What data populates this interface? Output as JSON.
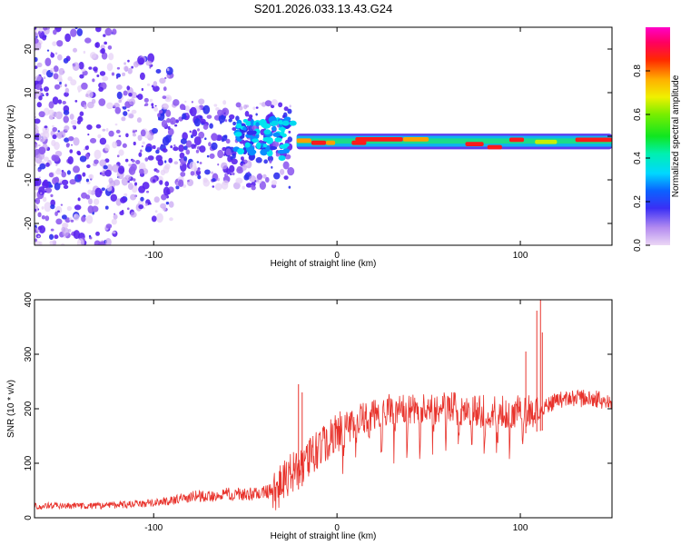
{
  "title": "S201.2026.033.13.43.G24",
  "chart_data": [
    {
      "type": "heatmap",
      "title": "S201.2026.033.13.43.G24",
      "xlabel": "Height of straight line (km)",
      "ylabel": "Frequency (Hz)",
      "xlim": [
        -165,
        150
      ],
      "ylim": [
        -25,
        25
      ],
      "x_ticks": [
        -100,
        0,
        100
      ],
      "x_tick_labels": [
        "-100",
        "0",
        "100"
      ],
      "y_ticks": [
        -20,
        -10,
        0,
        10,
        20
      ],
      "y_tick_labels": [
        "-20",
        "-10",
        "0",
        "10",
        "20"
      ],
      "colorbar": {
        "label": "Normalized spectral amplitude",
        "range": [
          0,
          1
        ],
        "ticks": [
          0.0,
          0.2,
          0.4,
          0.6,
          0.8
        ],
        "tick_labels": [
          "0.0",
          "0.2",
          "0.4",
          "0.6",
          "0.8"
        ]
      },
      "ridge_segments": [
        {
          "x0": -22,
          "x1": -14,
          "freq": -1.0,
          "amp": 0.75
        },
        {
          "x0": -14,
          "x1": -6,
          "freq": -1.5,
          "amp": 0.95
        },
        {
          "x0": -6,
          "x1": -1,
          "freq": -1.5,
          "amp": 0.85
        },
        {
          "x0": 8,
          "x1": 16,
          "freq": -1.5,
          "amp": 0.95
        },
        {
          "x0": 10,
          "x1": 36,
          "freq": -0.7,
          "amp": 0.98
        },
        {
          "x0": 36,
          "x1": 50,
          "freq": -0.7,
          "amp": 0.8
        },
        {
          "x0": 70,
          "x1": 80,
          "freq": -1.8,
          "amp": 0.95
        },
        {
          "x0": 82,
          "x1": 90,
          "freq": -2.5,
          "amp": 0.95
        },
        {
          "x0": 94,
          "x1": 102,
          "freq": -0.8,
          "amp": 0.9
        },
        {
          "x0": 108,
          "x1": 120,
          "freq": -1.3,
          "amp": 0.7
        },
        {
          "x0": 130,
          "x1": 150,
          "freq": -0.8,
          "amp": 0.98
        }
      ]
    },
    {
      "type": "line",
      "xlabel": "Height of straight line (km)",
      "ylabel": "SNR (10 * v/v)",
      "xlim": [
        -165,
        150
      ],
      "ylim": [
        0,
        400
      ],
      "x_ticks": [
        -100,
        0,
        100
      ],
      "x_tick_labels": [
        "-100",
        "0",
        "100"
      ],
      "y_ticks": [
        0,
        100,
        200,
        300,
        400
      ],
      "y_tick_labels": [
        "0",
        "100",
        "200",
        "300",
        "400"
      ],
      "series": [
        {
          "name": "SNR",
          "color": "#e8332c",
          "trend_x": [
            -165,
            -130,
            -100,
            -80,
            -60,
            -45,
            -35,
            -25,
            -15,
            -5,
            5,
            15,
            25,
            35,
            50,
            65,
            80,
            95,
            105,
            112,
            120,
            130,
            150
          ],
          "trend_y": [
            20,
            20,
            25,
            35,
            40,
            40,
            45,
            80,
            110,
            140,
            165,
            185,
            195,
            200,
            200,
            200,
            195,
            195,
            195,
            200,
            215,
            220,
            215
          ],
          "spikes": [
            {
              "x": -21,
              "y": 245
            },
            {
              "x": -19,
              "y": 230
            },
            {
              "x": 103,
              "y": 305
            },
            {
              "x": 109,
              "y": 380
            },
            {
              "x": 111,
              "y": 400
            },
            {
              "x": 112,
              "y": 340
            }
          ]
        }
      ]
    }
  ]
}
